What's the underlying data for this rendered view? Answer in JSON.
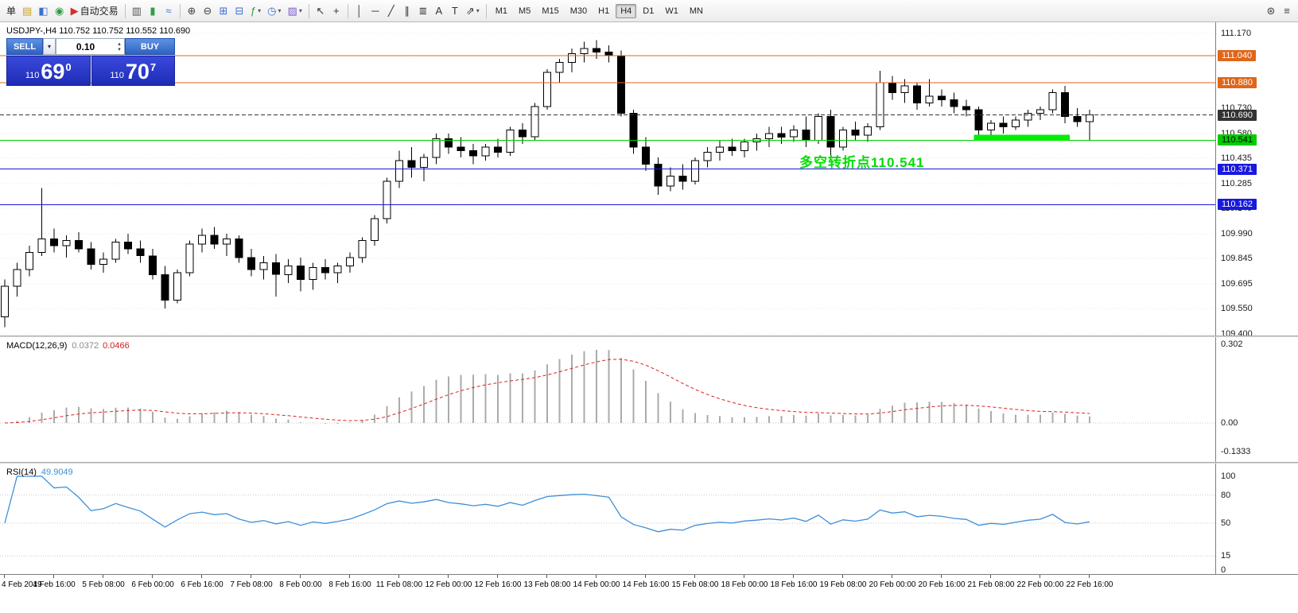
{
  "symbol_line": "USDJPY-,H4 110.752 110.752 110.552 110.690",
  "icons": {
    "caret_down": "▾",
    "spinner_up": "▴",
    "spinner_down": "▾"
  },
  "quote_panel": {
    "sell_label": "SELL",
    "buy_label": "BUY",
    "lot_value": "0.10",
    "bid": {
      "prefix": "110",
      "big": "69",
      "sup": "0"
    },
    "ask": {
      "prefix": "110",
      "big": "70",
      "sup": "7"
    }
  },
  "toolbar": {
    "caret_glyph": "▾",
    "groups": [
      {
        "items": [
          {
            "name": "new-order-button",
            "label": "单"
          },
          {
            "name": "market-watch-button",
            "glyph": "▤",
            "color": "#c9a227"
          },
          {
            "name": "navigator-button",
            "glyph": "◧",
            "color": "#3b6fd4"
          },
          {
            "name": "mql5-community-button",
            "glyph": "◉",
            "color": "#2f9e44"
          },
          {
            "name": "autotrading-button",
            "glyph": "▶",
            "color": "#d03030",
            "label": "自动交易"
          }
        ]
      },
      {
        "items": [
          {
            "name": "bar-chart-button",
            "glyph": "▥",
            "color": "#555"
          },
          {
            "name": "candlestick-chart-button",
            "glyph": "▮",
            "color": "#2f9e44"
          },
          {
            "name": "line-chart-button",
            "glyph": "≈",
            "color": "#3b6fd4"
          }
        ]
      },
      {
        "items": [
          {
            "name": "zoom-in-button",
            "glyph": "⊕",
            "color": "#444"
          },
          {
            "name": "zoom-out-button",
            "glyph": "⊖",
            "color": "#444"
          },
          {
            "name": "tile-windows-button",
            "glyph": "⊞",
            "color": "#3b6fd4"
          },
          {
            "name": "arrange-windows-button",
            "glyph": "⊟",
            "color": "#3b6fd4"
          },
          {
            "name": "indicators-button",
            "glyph": "ƒ",
            "color": "#2f9e44",
            "caret": true
          },
          {
            "name": "periods-button",
            "glyph": "◷",
            "color": "#3b6fd4",
            "caret": true
          },
          {
            "name": "templates-button",
            "glyph": "▨",
            "color": "#7a5cc5",
            "caret": true
          }
        ]
      },
      {
        "items": [
          {
            "name": "cursor-button",
            "glyph": "↖",
            "color": "#333"
          },
          {
            "name": "crosshair-button",
            "glyph": "+",
            "color": "#333"
          }
        ]
      },
      {
        "items": [
          {
            "name": "vertical-line-button",
            "glyph": "│",
            "color": "#333"
          },
          {
            "name": "horizontal-line-button",
            "glyph": "─",
            "color": "#333"
          },
          {
            "name": "trendline-button",
            "glyph": "╱",
            "color": "#333"
          },
          {
            "name": "equidistant-channel-button",
            "glyph": "∥",
            "color": "#333"
          },
          {
            "name": "fibonacci-button",
            "glyph": "≣",
            "color": "#333"
          },
          {
            "name": "text-button",
            "glyph": "A",
            "color": "#333"
          },
          {
            "name": "text-label-button",
            "glyph": "T",
            "color": "#333"
          },
          {
            "name": "arrows-button",
            "glyph": "⇗",
            "color": "#333",
            "caret": true
          }
        ]
      }
    ],
    "timeframes": {
      "items": [
        "M1",
        "M5",
        "M15",
        "M30",
        "H1",
        "H4",
        "D1",
        "W1",
        "MN"
      ],
      "active": "H4"
    },
    "right_items": [
      {
        "name": "search-icon",
        "glyph": "⊛",
        "color": "#444"
      },
      {
        "name": "window-list-icon",
        "glyph": "≡",
        "color": "#444"
      }
    ]
  },
  "chart_data": {
    "type": "candlestick",
    "title": "USDJPY- H4",
    "ohlc_series": [
      [
        109.5,
        109.72,
        109.44,
        109.68
      ],
      [
        109.68,
        109.82,
        109.62,
        109.78
      ],
      [
        109.78,
        109.92,
        109.74,
        109.88
      ],
      [
        109.88,
        110.26,
        109.86,
        109.96
      ],
      [
        109.96,
        110.02,
        109.88,
        109.92
      ],
      [
        109.92,
        109.98,
        109.85,
        109.95
      ],
      [
        109.95,
        110.0,
        109.88,
        109.9
      ],
      [
        109.9,
        109.94,
        109.78,
        109.81
      ],
      [
        109.81,
        109.88,
        109.76,
        109.84
      ],
      [
        109.84,
        109.96,
        109.82,
        109.94
      ],
      [
        109.94,
        109.99,
        109.87,
        109.9
      ],
      [
        109.9,
        109.95,
        109.82,
        109.86
      ],
      [
        109.86,
        109.9,
        109.72,
        109.75
      ],
      [
        109.75,
        109.8,
        109.55,
        109.6
      ],
      [
        109.6,
        109.78,
        109.58,
        109.76
      ],
      [
        109.76,
        109.95,
        109.74,
        109.93
      ],
      [
        109.93,
        110.02,
        109.88,
        109.98
      ],
      [
        109.98,
        110.03,
        109.9,
        109.93
      ],
      [
        109.93,
        109.99,
        109.86,
        109.96
      ],
      [
        109.96,
        109.98,
        109.82,
        109.85
      ],
      [
        109.85,
        109.9,
        109.74,
        109.78
      ],
      [
        109.78,
        109.86,
        109.72,
        109.82
      ],
      [
        109.82,
        109.87,
        109.62,
        109.75
      ],
      [
        109.75,
        109.84,
        109.7,
        109.8
      ],
      [
        109.8,
        109.85,
        109.65,
        109.72
      ],
      [
        109.72,
        109.82,
        109.66,
        109.79
      ],
      [
        109.79,
        109.84,
        109.72,
        109.76
      ],
      [
        109.76,
        109.82,
        109.7,
        109.8
      ],
      [
        109.8,
        109.88,
        109.76,
        109.85
      ],
      [
        109.85,
        109.97,
        109.82,
        109.95
      ],
      [
        109.95,
        110.1,
        109.92,
        110.08
      ],
      [
        110.08,
        110.32,
        110.05,
        110.3
      ],
      [
        110.3,
        110.48,
        110.26,
        110.42
      ],
      [
        110.42,
        110.5,
        110.32,
        110.38
      ],
      [
        110.38,
        110.46,
        110.3,
        110.44
      ],
      [
        110.44,
        110.58,
        110.4,
        110.55
      ],
      [
        110.55,
        110.58,
        110.46,
        110.5
      ],
      [
        110.5,
        110.56,
        110.44,
        110.48
      ],
      [
        110.48,
        110.52,
        110.4,
        110.45
      ],
      [
        110.45,
        110.52,
        110.42,
        110.5
      ],
      [
        110.5,
        110.55,
        110.44,
        110.47
      ],
      [
        110.47,
        110.62,
        110.45,
        110.6
      ],
      [
        110.6,
        110.64,
        110.52,
        110.56
      ],
      [
        110.56,
        110.76,
        110.54,
        110.74
      ],
      [
        110.74,
        110.96,
        110.72,
        110.94
      ],
      [
        110.94,
        111.02,
        110.88,
        111.0
      ],
      [
        111.0,
        111.08,
        110.94,
        111.05
      ],
      [
        111.05,
        111.12,
        111.0,
        111.08
      ],
      [
        111.08,
        111.13,
        111.02,
        111.06
      ],
      [
        111.06,
        111.1,
        111.0,
        111.04
      ],
      [
        111.04,
        111.07,
        110.68,
        110.7
      ],
      [
        110.7,
        110.72,
        110.46,
        110.5
      ],
      [
        110.5,
        110.56,
        110.36,
        110.4
      ],
      [
        110.4,
        110.44,
        110.22,
        110.27
      ],
      [
        110.27,
        110.38,
        110.24,
        110.33
      ],
      [
        110.33,
        110.4,
        110.25,
        110.3
      ],
      [
        110.3,
        110.44,
        110.28,
        110.42
      ],
      [
        110.42,
        110.5,
        110.38,
        110.47
      ],
      [
        110.47,
        110.54,
        110.42,
        110.5
      ],
      [
        110.5,
        110.55,
        110.45,
        110.48
      ],
      [
        110.48,
        110.55,
        110.44,
        110.53
      ],
      [
        110.53,
        110.58,
        110.48,
        110.55
      ],
      [
        110.55,
        110.62,
        110.5,
        110.58
      ],
      [
        110.58,
        110.62,
        110.52,
        110.56
      ],
      [
        110.56,
        110.63,
        110.53,
        110.6
      ],
      [
        110.6,
        110.68,
        110.5,
        110.54
      ],
      [
        110.54,
        110.7,
        110.52,
        110.68
      ],
      [
        110.68,
        110.72,
        110.45,
        110.5
      ],
      [
        110.5,
        110.62,
        110.48,
        110.6
      ],
      [
        110.6,
        110.65,
        110.54,
        110.57
      ],
      [
        110.57,
        110.64,
        110.53,
        110.62
      ],
      [
        110.62,
        110.95,
        110.6,
        110.88
      ],
      [
        110.88,
        110.92,
        110.78,
        110.82
      ],
      [
        110.82,
        110.9,
        110.76,
        110.86
      ],
      [
        110.86,
        110.88,
        110.72,
        110.76
      ],
      [
        110.76,
        110.9,
        110.74,
        110.8
      ],
      [
        110.8,
        110.84,
        110.74,
        110.78
      ],
      [
        110.78,
        110.82,
        110.7,
        110.74
      ],
      [
        110.74,
        110.78,
        110.68,
        110.72
      ],
      [
        110.72,
        110.74,
        110.56,
        110.6
      ],
      [
        110.6,
        110.66,
        110.56,
        110.64
      ],
      [
        110.64,
        110.68,
        110.58,
        110.62
      ],
      [
        110.62,
        110.68,
        110.6,
        110.66
      ],
      [
        110.66,
        110.72,
        110.62,
        110.7
      ],
      [
        110.7,
        110.74,
        110.66,
        110.72
      ],
      [
        110.72,
        110.84,
        110.7,
        110.82
      ],
      [
        110.82,
        110.86,
        110.64,
        110.68
      ],
      [
        110.68,
        110.73,
        110.62,
        110.65
      ],
      [
        110.65,
        110.72,
        110.54,
        110.69
      ]
    ],
    "x_labels": [
      "4 Feb 2019",
      "4 Feb 16:00",
      "5 Feb 08:00",
      "6 Feb 00:00",
      "6 Feb 16:00",
      "7 Feb 08:00",
      "8 Feb 00:00",
      "8 Feb 16:00",
      "11 Feb 08:00",
      "12 Feb 00:00",
      "12 Feb 16:00",
      "13 Feb 08:00",
      "14 Feb 00:00",
      "14 Feb 16:00",
      "15 Feb 08:00",
      "18 Feb 00:00",
      "18 Feb 16:00",
      "19 Feb 08:00",
      "20 Feb 00:00",
      "20 Feb 16:00",
      "21 Feb 08:00",
      "22 Feb 00:00",
      "22 Feb 16:00"
    ],
    "y_axis": {
      "min": 109.39,
      "max": 111.185,
      "tick_labels": [
        "111.170",
        "111.025",
        "110.880",
        "110.730",
        "110.580",
        "110.435",
        "110.285",
        "110.140",
        "109.990",
        "109.845",
        "109.695",
        "109.550",
        "109.400"
      ]
    },
    "levels": [
      {
        "label": "111.040",
        "price": 111.04,
        "color": "#E0661A",
        "style": "solid",
        "tag_text_color": "#ffffff"
      },
      {
        "label": "110.880",
        "price": 110.88,
        "color": "#E0661A",
        "style": "solid",
        "tag_text_color": "#ffffff"
      },
      {
        "label": "110.690",
        "price": 110.69,
        "color": "#333333",
        "style": "dashed",
        "tag_text_color": "#ffffff"
      },
      {
        "label": "110.541",
        "price": 110.541,
        "color": "#00CC00",
        "style": "solid",
        "tag_text_color": "#000000"
      },
      {
        "label": "110.371",
        "price": 110.371,
        "color": "#1818E0",
        "style": "solid",
        "tag_text_color": "#ffffff"
      },
      {
        "label": "110.162",
        "price": 110.162,
        "color": "#1818E0",
        "style": "solid",
        "tag_text_color": "#ffffff"
      }
    ],
    "current_price": "110.690",
    "highlight": {
      "from_candle": 79,
      "to_candle": 86,
      "price": 110.541,
      "color": "#00EE00"
    },
    "annotation": {
      "text": "多空转折点110.541",
      "color": "#00DE00"
    },
    "indicators": [
      {
        "name": "macd",
        "label": "MACD(12,26,9)",
        "value_main": "0.0372",
        "value_signal": "0.0466",
        "params": [
          12,
          26,
          9
        ],
        "axis_labels": [
          "0.302",
          "0.00",
          "-0.1333"
        ],
        "histogram_color": "#ABABAB",
        "signal_color": "#E02020",
        "derived_from_closes": true
      },
      {
        "name": "rsi",
        "label": "RSI(14)",
        "value": "49.9049",
        "period": 14,
        "axis_labels": [
          "100",
          "80",
          "50",
          "15",
          "0"
        ],
        "level_lines": [
          80,
          50,
          15
        ],
        "line_color": "#3E8FD8",
        "derived_from_closes": true
      }
    ]
  }
}
